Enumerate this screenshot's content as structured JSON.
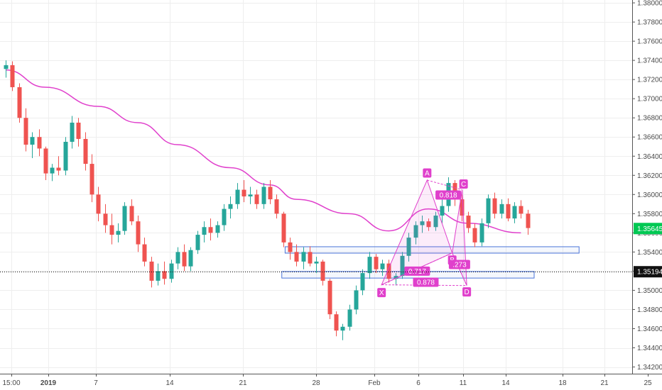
{
  "chart_data": {
    "type": "candlestick",
    "price_axis": {
      "ticks": [
        "1.38000",
        "1.37800",
        "1.37600",
        "1.37400",
        "1.37200",
        "1.37000",
        "1.36800",
        "1.36600",
        "1.36400",
        "1.36200",
        "1.36000",
        "1.35800",
        "1.35600",
        "1.35400",
        "1.35200",
        "1.35000",
        "1.34800",
        "1.34600",
        "1.34400",
        "1.34200"
      ],
      "range": [
        1.3413,
        1.3803
      ]
    },
    "time_axis": {
      "ticks": [
        {
          "label": "15:00",
          "bold": false
        },
        {
          "label": "2019",
          "bold": true
        },
        {
          "label": "7",
          "bold": false
        },
        {
          "label": "14",
          "bold": false
        },
        {
          "label": "21",
          "bold": false
        },
        {
          "label": "28",
          "bold": false
        },
        {
          "label": "Feb",
          "bold": false
        },
        {
          "label": "6",
          "bold": false
        },
        {
          "label": "11",
          "bold": false
        },
        {
          "label": "14",
          "bold": false
        },
        {
          "label": "18",
          "bold": false
        },
        {
          "label": "21",
          "bold": false
        },
        {
          "label": "25",
          "bold": false
        }
      ]
    },
    "candles": [
      [
        1.3731,
        1.374,
        1.3722,
        1.3735
      ],
      [
        1.3735,
        1.3739,
        1.3708,
        1.3712
      ],
      [
        1.3712,
        1.3716,
        1.3675,
        1.368
      ],
      [
        1.368,
        1.369,
        1.3645,
        1.3652
      ],
      [
        1.3652,
        1.3665,
        1.3638,
        1.366
      ],
      [
        1.366,
        1.3668,
        1.364,
        1.3648
      ],
      [
        1.3648,
        1.365,
        1.3615,
        1.3622
      ],
      [
        1.3622,
        1.3632,
        1.3614,
        1.3628
      ],
      [
        1.3628,
        1.364,
        1.362,
        1.3625
      ],
      [
        1.3625,
        1.366,
        1.362,
        1.3655
      ],
      [
        1.3655,
        1.3682,
        1.3648,
        1.3675
      ],
      [
        1.3675,
        1.368,
        1.365,
        1.3658
      ],
      [
        1.3658,
        1.3665,
        1.3625,
        1.3632
      ],
      [
        1.3632,
        1.3642,
        1.3592,
        1.36
      ],
      [
        1.36,
        1.3608,
        1.3572,
        1.358
      ],
      [
        1.358,
        1.359,
        1.356,
        1.3568
      ],
      [
        1.3568,
        1.358,
        1.3548,
        1.3558
      ],
      [
        1.3558,
        1.357,
        1.355,
        1.3562
      ],
      [
        1.3562,
        1.3592,
        1.3558,
        1.3588
      ],
      [
        1.3588,
        1.3595,
        1.3568,
        1.3572
      ],
      [
        1.3572,
        1.3578,
        1.354,
        1.3548
      ],
      [
        1.3548,
        1.3555,
        1.3525,
        1.353
      ],
      [
        1.353,
        1.3535,
        1.3503,
        1.351
      ],
      [
        1.351,
        1.3528,
        1.3505,
        1.352
      ],
      [
        1.352,
        1.353,
        1.3506,
        1.3512
      ],
      [
        1.3512,
        1.3532,
        1.3508,
        1.3528
      ],
      [
        1.3528,
        1.3545,
        1.3522,
        1.354
      ],
      [
        1.354,
        1.3548,
        1.352,
        1.3525
      ],
      [
        1.3525,
        1.3545,
        1.352,
        1.3542
      ],
      [
        1.3542,
        1.3562,
        1.3538,
        1.3558
      ],
      [
        1.3558,
        1.3572,
        1.355,
        1.3566
      ],
      [
        1.3566,
        1.3575,
        1.3552,
        1.356
      ],
      [
        1.356,
        1.3572,
        1.3555,
        1.3568
      ],
      [
        1.3568,
        1.359,
        1.3562,
        1.3585
      ],
      [
        1.3585,
        1.3598,
        1.3575,
        1.359
      ],
      [
        1.359,
        1.3612,
        1.3585,
        1.3605
      ],
      [
        1.3605,
        1.3615,
        1.3592,
        1.3598
      ],
      [
        1.3598,
        1.3608,
        1.359,
        1.36
      ],
      [
        1.36,
        1.3605,
        1.3585,
        1.359
      ],
      [
        1.359,
        1.3612,
        1.3585,
        1.3608
      ],
      [
        1.3608,
        1.3615,
        1.359,
        1.3595
      ],
      [
        1.3595,
        1.36,
        1.3575,
        1.358
      ],
      [
        1.358,
        1.3582,
        1.3545,
        1.355
      ],
      [
        1.355,
        1.3555,
        1.3532,
        1.354
      ],
      [
        1.354,
        1.3548,
        1.3525,
        1.353
      ],
      [
        1.353,
        1.3545,
        1.3522,
        1.354
      ],
      [
        1.354,
        1.3546,
        1.3525,
        1.3528
      ],
      [
        1.3528,
        1.3535,
        1.3518,
        1.353
      ],
      [
        1.353,
        1.3532,
        1.3505,
        1.351
      ],
      [
        1.351,
        1.3512,
        1.347,
        1.3475
      ],
      [
        1.3475,
        1.3478,
        1.3452,
        1.3458
      ],
      [
        1.3458,
        1.3465,
        1.3448,
        1.3462
      ],
      [
        1.3462,
        1.3485,
        1.3458,
        1.348
      ],
      [
        1.348,
        1.3505,
        1.3475,
        1.35
      ],
      [
        1.35,
        1.3522,
        1.3495,
        1.3518
      ],
      [
        1.3518,
        1.354,
        1.3512,
        1.3535
      ],
      [
        1.3535,
        1.3538,
        1.3518,
        1.3522
      ],
      [
        1.3522,
        1.3532,
        1.3515,
        1.3528
      ],
      [
        1.3528,
        1.3532,
        1.3508,
        1.3512
      ],
      [
        1.3512,
        1.3518,
        1.3505,
        1.3515
      ],
      [
        1.3515,
        1.354,
        1.3512,
        1.3536
      ],
      [
        1.3536,
        1.356,
        1.353,
        1.3555
      ],
      [
        1.3555,
        1.3572,
        1.3548,
        1.3568
      ],
      [
        1.3568,
        1.3578,
        1.356,
        1.3572
      ],
      [
        1.3572,
        1.3575,
        1.3562,
        1.3566
      ],
      [
        1.3566,
        1.3582,
        1.3562,
        1.3578
      ],
      [
        1.3578,
        1.3595,
        1.357,
        1.3588
      ],
      [
        1.3588,
        1.3618,
        1.3582,
        1.3612
      ],
      [
        1.3612,
        1.3615,
        1.3588,
        1.3595
      ],
      [
        1.3595,
        1.36,
        1.3572,
        1.3578
      ],
      [
        1.3578,
        1.3582,
        1.356,
        1.3565
      ],
      [
        1.3565,
        1.357,
        1.3545,
        1.355
      ],
      [
        1.355,
        1.3575,
        1.3546,
        1.357
      ],
      [
        1.357,
        1.36,
        1.3565,
        1.3596
      ],
      [
        1.3596,
        1.3602,
        1.3575,
        1.358
      ],
      [
        1.358,
        1.3595,
        1.3575,
        1.359
      ],
      [
        1.359,
        1.3596,
        1.3572,
        1.3575
      ],
      [
        1.3575,
        1.3592,
        1.357,
        1.3588
      ],
      [
        1.3588,
        1.3594,
        1.3575,
        1.358
      ],
      [
        1.358,
        1.3584,
        1.3558,
        1.3565
      ]
    ],
    "moving_average": {
      "color": "#e040cc",
      "points": [
        [
          0,
          1.373
        ],
        [
          6,
          1.3712
        ],
        [
          14,
          1.3692
        ],
        [
          20,
          1.3675
        ],
        [
          26,
          1.3652
        ],
        [
          34,
          1.3628
        ],
        [
          40,
          1.361
        ],
        [
          44,
          1.3595
        ],
        [
          52,
          1.358
        ],
        [
          58,
          1.3562
        ],
        [
          64,
          1.3585
        ],
        [
          70,
          1.357
        ],
        [
          78,
          1.356
        ]
      ]
    },
    "horizontal_line": {
      "price": 1.35194,
      "style": "dotted"
    },
    "rectangles": [
      {
        "x1": 42.3,
        "x2": 86.8,
        "top": 1.35455,
        "bottom": 1.35388
      },
      {
        "x1": 41.8,
        "x2": 80.0,
        "top": 1.35197,
        "bottom": 1.35128
      }
    ],
    "harmonic": {
      "X": [
        56.9,
        1.35058
      ],
      "A": [
        63.8,
        1.3615
      ],
      "B": [
        67.6,
        1.3539
      ],
      "C": [
        69.1,
        1.3605
      ],
      "D": [
        69.8,
        1.3505
      ],
      "labels": {
        "X": "X",
        "A": "A",
        "B": "B",
        "C": "C",
        "D": "D"
      },
      "ratios": [
        {
          "text": "0.818",
          "at": [
            67.0,
            1.35995
          ]
        },
        {
          "text": ".273",
          "at": [
            68.7,
            1.3527
          ]
        },
        {
          "text": "0.717",
          "at": [
            62.3,
            1.352
          ]
        },
        {
          "text": "0.878",
          "at": [
            63.6,
            1.35085
          ]
        }
      ]
    },
    "price_labels": [
      {
        "text": "1.35645",
        "price": 1.35645,
        "bg": "#00c853",
        "fg": "#ffffff"
      },
      {
        "text": "1.35194",
        "price": 1.35194,
        "bg": "#111111",
        "fg": "#ffffff"
      }
    ],
    "colors": {
      "up": "#26a69a",
      "down": "#ef5350",
      "grid": "#eeeeee",
      "rect": "#4a74d9",
      "harmonic": "#e040cc"
    }
  }
}
